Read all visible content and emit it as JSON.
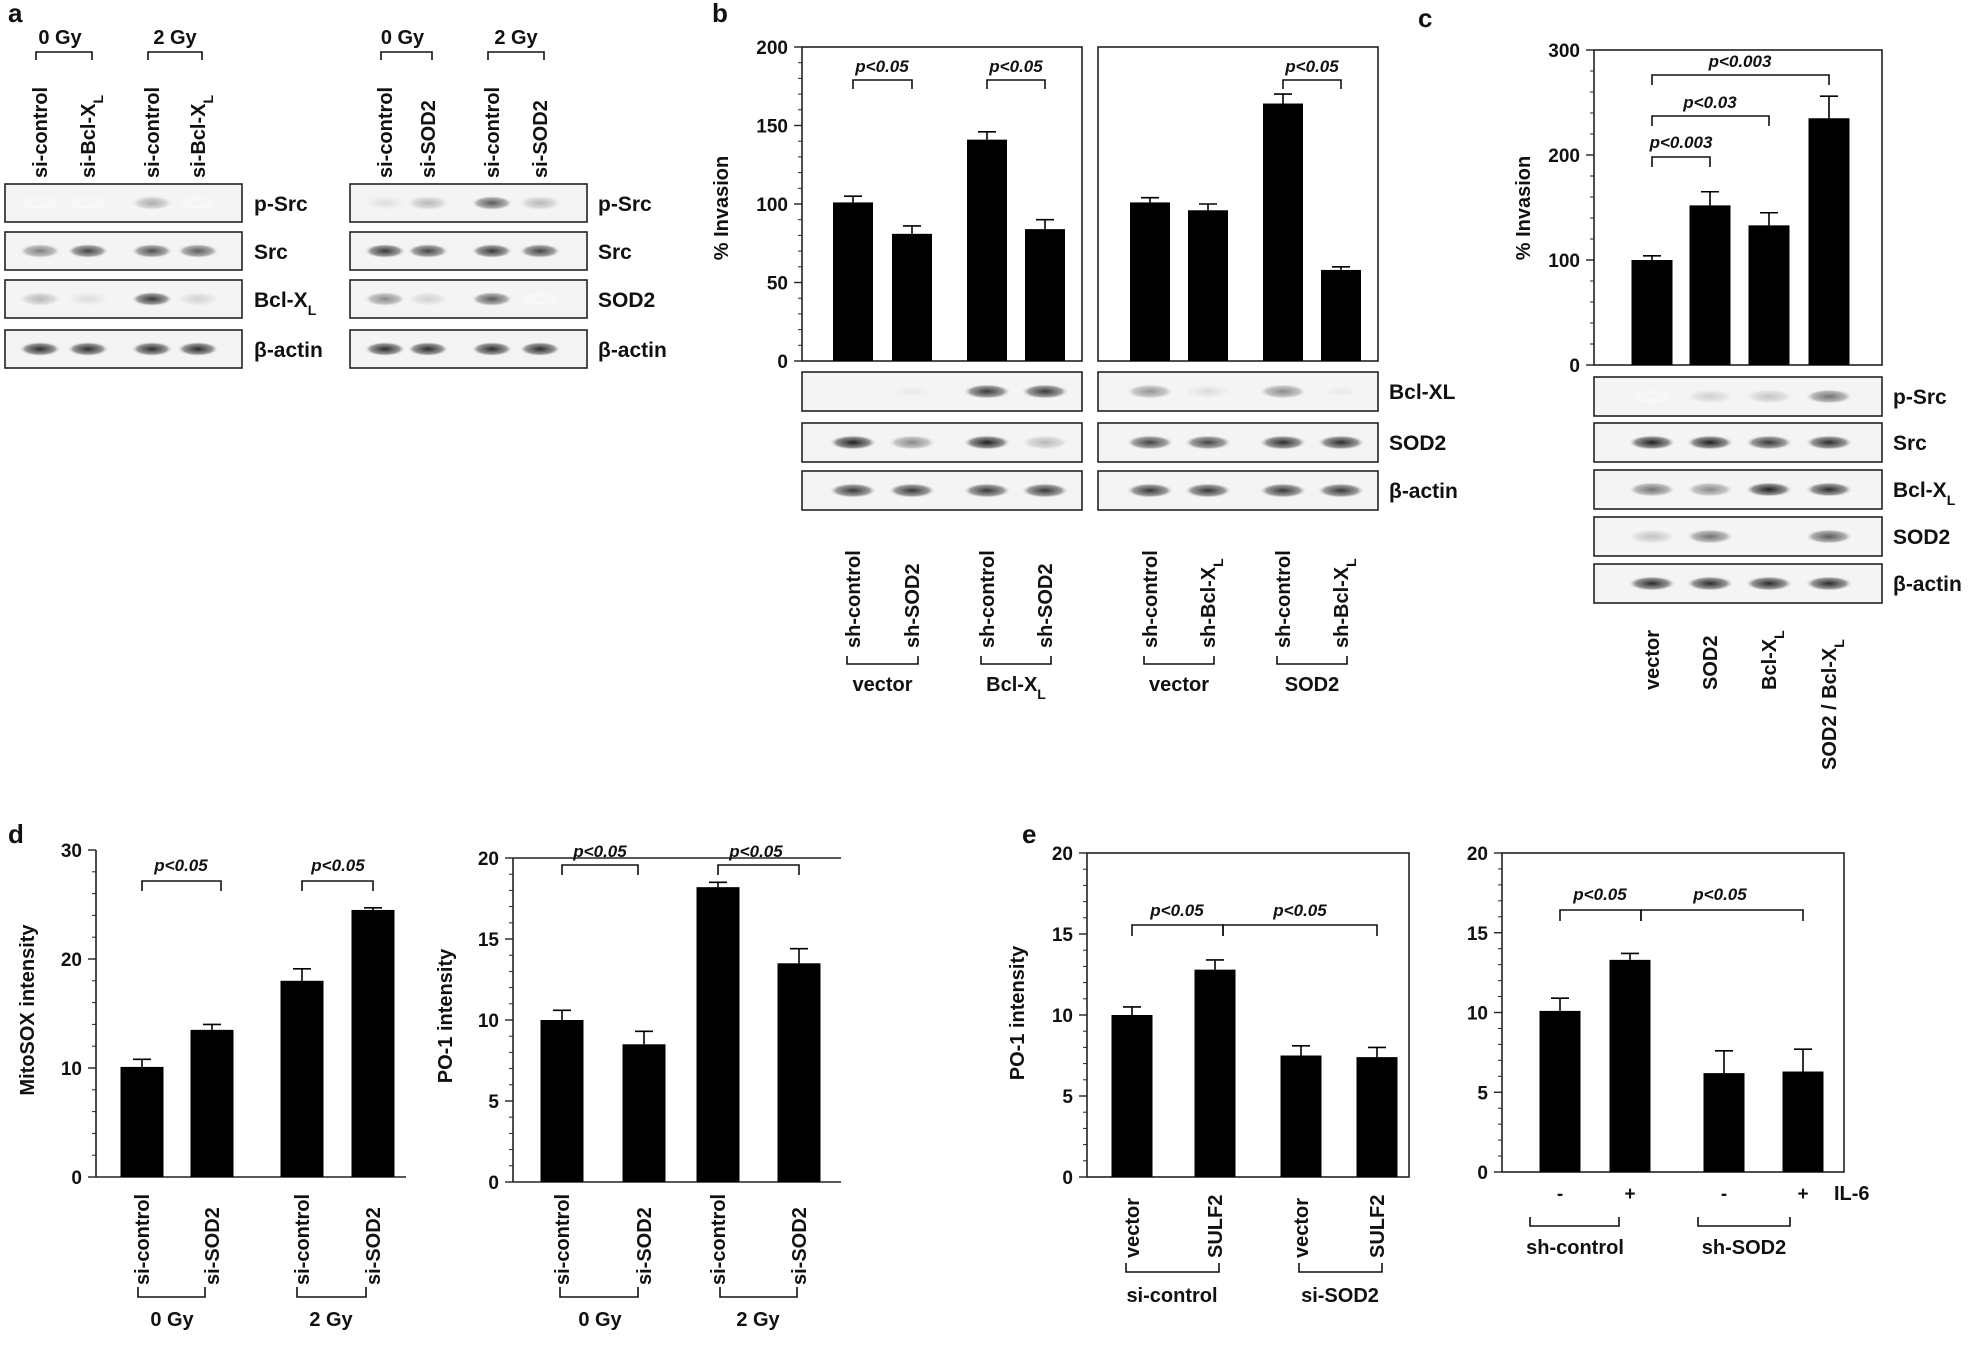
{
  "panel_labels": {
    "a": "a",
    "b": "b",
    "c": "c",
    "d": "d",
    "e": "e"
  },
  "a": {
    "left": {
      "dose": [
        "0 Gy",
        "2 Gy"
      ],
      "lanes": [
        "si-control",
        "si-Bcl-X",
        "si-control",
        "si-Bcl-X"
      ],
      "lane_subscript": "L",
      "blots": [
        {
          "label": "p-Src",
          "intensity": [
            0.05,
            0.05,
            0.35,
            0.05
          ]
        },
        {
          "label": "Src",
          "intensity": [
            0.55,
            0.8,
            0.75,
            0.7
          ]
        },
        {
          "label": "Bcl-X",
          "sub": "L",
          "intensity": [
            0.3,
            0.15,
            0.85,
            0.2
          ]
        },
        {
          "label": "β-actin",
          "intensity": [
            0.9,
            0.9,
            0.9,
            0.9
          ]
        }
      ]
    },
    "right": {
      "dose": [
        "0 Gy",
        "2 Gy"
      ],
      "lanes": [
        "si-control",
        "si-SOD2",
        "si-control",
        "si-SOD2"
      ],
      "blots": [
        {
          "label": "p-Src",
          "intensity": [
            0.15,
            0.3,
            0.7,
            0.3
          ]
        },
        {
          "label": "Src",
          "intensity": [
            0.85,
            0.8,
            0.85,
            0.8
          ]
        },
        {
          "label": "SOD2",
          "intensity": [
            0.5,
            0.2,
            0.7,
            0.05
          ]
        },
        {
          "label": "β-actin",
          "intensity": [
            0.9,
            0.9,
            0.9,
            0.9
          ]
        }
      ]
    }
  },
  "b": {
    "ylabel": "% Invasion",
    "yticks": [
      "0",
      "50",
      "100",
      "150",
      "200"
    ],
    "lanes": [
      "sh-control",
      "sh-SOD2",
      "sh-control",
      "sh-SOD2",
      "sh-control",
      "sh-Bcl-X",
      "sh-control",
      "sh-Bcl-X"
    ],
    "lane_subscript": "L",
    "groups": [
      "vector",
      "Bcl-X",
      "vector",
      "SOD2"
    ],
    "group_subscript": "L",
    "pvalues": [
      "p<0.05",
      "p<0.05",
      "p<0.05"
    ],
    "blots": [
      {
        "label": "Bcl-XL",
        "intensity": [
          0.02,
          0.1,
          0.85,
          0.85,
          0.45,
          0.15,
          0.5,
          0.1
        ]
      },
      {
        "label": "SOD2",
        "intensity": [
          0.95,
          0.5,
          0.95,
          0.3,
          0.8,
          0.8,
          0.9,
          0.9
        ]
      },
      {
        "label": "β-actin",
        "intensity": [
          0.85,
          0.85,
          0.85,
          0.85,
          0.85,
          0.85,
          0.85,
          0.85
        ]
      }
    ]
  },
  "c": {
    "ylabel": "% Invasion",
    "yticks": [
      "0",
      "100",
      "200",
      "300"
    ],
    "lanes": [
      "vector",
      "SOD2",
      "Bcl-X",
      "SOD2 / Bcl-X"
    ],
    "lane_subscript": "L",
    "pvalues": [
      "p<0.003",
      "p<0.03",
      "p<0.003"
    ],
    "blots": [
      {
        "label": "p-Src",
        "intensity": [
          0.05,
          0.2,
          0.25,
          0.6
        ]
      },
      {
        "label": "Src",
        "intensity": [
          0.95,
          0.95,
          0.85,
          0.9
        ]
      },
      {
        "label": "Bcl-X",
        "sub": "L",
        "intensity": [
          0.6,
          0.5,
          0.95,
          0.9
        ]
      },
      {
        "label": "SOD2",
        "intensity": [
          0.25,
          0.6,
          0.02,
          0.7
        ]
      },
      {
        "label": "β-actin",
        "intensity": [
          0.9,
          0.9,
          0.9,
          0.9
        ]
      }
    ]
  },
  "d": {
    "doses": [
      "0 Gy",
      "2 Gy"
    ],
    "lanes": [
      "si-control",
      "si-SOD2",
      "si-control",
      "si-SOD2"
    ]
  },
  "e": {
    "lanes_left": [
      "vector",
      "SULF2",
      "vector",
      "SULF2"
    ],
    "groups_left": [
      "si-control",
      "si-SOD2"
    ],
    "il6_signs": [
      "-",
      "+",
      "-",
      "+"
    ],
    "il6_label": "IL-6",
    "groups_right": [
      "sh-control",
      "sh-SOD2"
    ]
  },
  "chart_data": [
    {
      "id": "b-left",
      "type": "bar",
      "categories": [
        "vector sh-control",
        "vector sh-SOD2",
        "Bcl-XL sh-control",
        "Bcl-XL sh-SOD2"
      ],
      "values": [
        101,
        81,
        141,
        84
      ],
      "errors": [
        4,
        5,
        5,
        6
      ],
      "ylabel": "% Invasion",
      "ylim": [
        0,
        200
      ],
      "annotations": [
        {
          "text": "p<0.05",
          "from": 0,
          "to": 1
        },
        {
          "text": "p<0.05",
          "from": 2,
          "to": 3
        }
      ]
    },
    {
      "id": "b-right",
      "type": "bar",
      "categories": [
        "vector sh-control",
        "vector sh-Bcl-XL",
        "SOD2 sh-control",
        "SOD2 sh-Bcl-XL"
      ],
      "values": [
        101,
        96,
        164,
        58
      ],
      "errors": [
        3,
        4,
        6,
        2
      ],
      "ylim": [
        0,
        200
      ],
      "annotations": [
        {
          "text": "p<0.05",
          "from": 2,
          "to": 3
        }
      ]
    },
    {
      "id": "c",
      "type": "bar",
      "categories": [
        "vector",
        "SOD2",
        "Bcl-XL",
        "SOD2 / Bcl-XL"
      ],
      "values": [
        100,
        152,
        133,
        235
      ],
      "errors": [
        4,
        13,
        12,
        21
      ],
      "ylabel": "% Invasion",
      "ylim": [
        0,
        300
      ],
      "annotations": [
        {
          "text": "p<0.003",
          "from": 0,
          "to": 1
        },
        {
          "text": "p<0.03",
          "from": 0,
          "to": 2
        },
        {
          "text": "p<0.003",
          "from": 0,
          "to": 3
        }
      ]
    },
    {
      "id": "d-left",
      "type": "bar",
      "categories": [
        "0 Gy si-control",
        "0 Gy si-SOD2",
        "2 Gy si-control",
        "2 Gy si-SOD2"
      ],
      "values": [
        10.1,
        13.5,
        18,
        24.5
      ],
      "errors": [
        0.7,
        0.5,
        1.1,
        0.2
      ],
      "ylabel": "MitoSOX intensity",
      "ylim": [
        0,
        30
      ],
      "yticks": [
        0,
        10,
        20,
        30
      ],
      "annotations": [
        {
          "text": "p<0.05",
          "from": 0,
          "to": 1
        },
        {
          "text": "p<0.05",
          "from": 2,
          "to": 3
        }
      ]
    },
    {
      "id": "d-right",
      "type": "bar",
      "categories": [
        "0 Gy si-control",
        "0 Gy si-SOD2",
        "2 Gy si-control",
        "2 Gy si-SOD2"
      ],
      "values": [
        10,
        8.5,
        18.2,
        13.5
      ],
      "errors": [
        0.6,
        0.8,
        0.3,
        0.9
      ],
      "ylabel": "PO-1 intensity",
      "ylim": [
        0,
        20
      ],
      "yticks": [
        0,
        5,
        10,
        15,
        20
      ],
      "annotations": [
        {
          "text": "p<0.05",
          "from": 0,
          "to": 1
        },
        {
          "text": "p<0.05",
          "from": 2,
          "to": 3
        }
      ]
    },
    {
      "id": "e-left",
      "type": "bar",
      "categories": [
        "si-control vector",
        "si-control SULF2",
        "si-SOD2 vector",
        "si-SOD2 SULF2"
      ],
      "values": [
        10,
        12.8,
        7.5,
        7.4
      ],
      "errors": [
        0.5,
        0.6,
        0.6,
        0.6
      ],
      "ylabel": "PO-1 intensity",
      "ylim": [
        0,
        20
      ],
      "yticks": [
        0,
        5,
        10,
        15,
        20
      ],
      "annotations": [
        {
          "text": "p<0.05",
          "from": 0,
          "to": 1
        },
        {
          "text": "p<0.05",
          "from": 1,
          "to": 3
        }
      ]
    },
    {
      "id": "e-right",
      "type": "bar",
      "categories": [
        "sh-control IL-6 -",
        "sh-control IL-6 +",
        "sh-SOD2 IL-6 -",
        "sh-SOD2 IL-6 +"
      ],
      "values": [
        10.1,
        13.3,
        6.2,
        6.3
      ],
      "errors": [
        0.8,
        0.4,
        1.4,
        1.4
      ],
      "ylim": [
        0,
        20
      ],
      "yticks": [
        0,
        5,
        10,
        15,
        20
      ],
      "annotations": [
        {
          "text": "p<0.05",
          "from": 0,
          "to": 1
        },
        {
          "text": "p<0.05",
          "from": 1,
          "to": 3
        }
      ]
    }
  ]
}
